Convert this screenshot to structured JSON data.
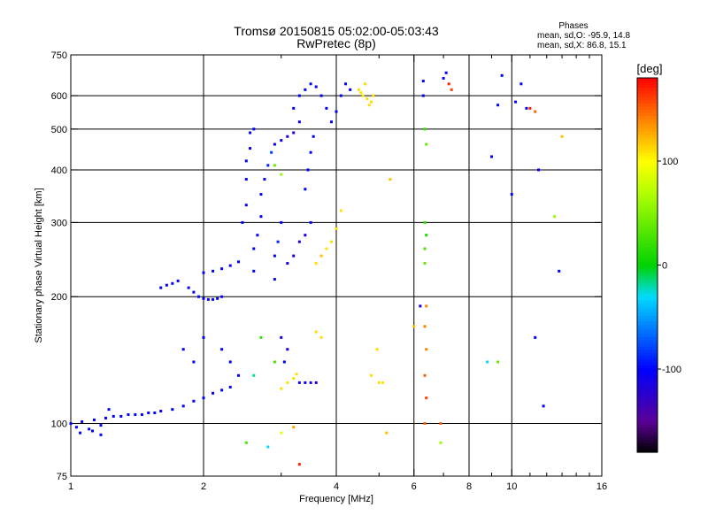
{
  "header": {
    "title_line1": "Tromsø 20150815 05:02:00-05:03:43",
    "title_line2": "RwPretec (8p)"
  },
  "stats": {
    "heading": "Phases",
    "line_o": "mean, sd,O: -95.9, 14.8",
    "line_x": "mean, sd,X:  86.8, 15.1"
  },
  "colorbar": {
    "label": "[deg]",
    "min": -180,
    "max": 180,
    "ticks": [
      {
        "value": 100,
        "label": "100"
      },
      {
        "value": 0,
        "label": "0"
      },
      {
        "value": -100,
        "label": "-100"
      }
    ]
  },
  "chart_data": {
    "type": "scatter",
    "title": "Tromsø 20150815 05:02:00-05:03:43",
    "subtitle": "RwPretec (8p)",
    "xlabel": "Frequency [MHz]",
    "ylabel": "Stationary phase Virtual Height [km]",
    "x_scale": "log",
    "y_scale": "log",
    "xlim": [
      1,
      16
    ],
    "ylim": [
      75,
      750
    ],
    "x_ticks": [
      {
        "value": 1,
        "label": "1"
      },
      {
        "value": 2,
        "label": "2"
      },
      {
        "value": 4,
        "label": "4"
      },
      {
        "value": 6,
        "label": "6"
      },
      {
        "value": 8,
        "label": "8"
      },
      {
        "value": 10,
        "label": "10"
      },
      {
        "value": 16,
        "label": "16"
      }
    ],
    "x_minor": [
      3,
      5,
      7,
      9,
      11,
      12,
      13,
      14,
      15
    ],
    "x_grid": [
      2,
      4,
      6,
      8,
      10
    ],
    "y_ticks": [
      {
        "value": 75,
        "label": "75"
      },
      {
        "value": 100,
        "label": "100"
      },
      {
        "value": 200,
        "label": "200"
      },
      {
        "value": 300,
        "label": "300"
      },
      {
        "value": 400,
        "label": "400"
      },
      {
        "value": 500,
        "label": "500"
      },
      {
        "value": 600,
        "label": "600"
      },
      {
        "value": 750,
        "label": "750"
      }
    ],
    "y_grid": [
      100,
      200,
      300,
      400,
      500,
      600
    ],
    "grid": true,
    "series": [
      {
        "points": [
          [
            1.0,
            100,
            -100
          ],
          [
            1.03,
            98,
            -100
          ],
          [
            1.06,
            101,
            -100
          ],
          [
            1.1,
            97,
            -100
          ],
          [
            1.13,
            102,
            -100
          ],
          [
            1.17,
            99,
            -100
          ],
          [
            1.2,
            103,
            -100
          ],
          [
            1.25,
            104,
            -100
          ],
          [
            1.3,
            104,
            -100
          ],
          [
            1.35,
            105,
            -100
          ],
          [
            1.4,
            105,
            -100
          ],
          [
            1.45,
            105,
            -100
          ],
          [
            1.5,
            106,
            -100
          ],
          [
            1.55,
            106,
            -100
          ],
          [
            1.6,
            107,
            -100
          ],
          [
            1.7,
            108,
            -100
          ],
          [
            1.8,
            110,
            -100
          ],
          [
            1.9,
            113,
            -100
          ],
          [
            2.0,
            115,
            -100
          ],
          [
            2.1,
            118,
            -100
          ],
          [
            2.2,
            120,
            -100
          ],
          [
            2.3,
            122,
            -100
          ],
          [
            1.05,
            95,
            -100
          ],
          [
            1.12,
            96,
            -100
          ],
          [
            1.17,
            94,
            -100
          ],
          [
            1.22,
            108,
            -100
          ],
          [
            1.6,
            210,
            -100
          ],
          [
            1.65,
            213,
            -100
          ],
          [
            1.7,
            215,
            -100
          ],
          [
            1.75,
            218,
            -100
          ],
          [
            1.85,
            210,
            -100
          ],
          [
            1.9,
            205,
            -100
          ],
          [
            1.95,
            200,
            -100
          ],
          [
            2.0,
            198,
            -100
          ],
          [
            2.05,
            197,
            -100
          ],
          [
            2.1,
            197,
            -100
          ],
          [
            2.15,
            198,
            -100
          ],
          [
            2.2,
            200,
            -100
          ],
          [
            2.0,
            228,
            -100
          ],
          [
            2.1,
            230,
            -100
          ],
          [
            2.2,
            233,
            -100
          ],
          [
            2.3,
            237,
            -100
          ],
          [
            2.4,
            242,
            -100
          ],
          [
            2.45,
            300,
            -100
          ],
          [
            2.5,
            330,
            -100
          ],
          [
            2.5,
            380,
            -100
          ],
          [
            2.5,
            420,
            -100
          ],
          [
            2.55,
            450,
            -100
          ],
          [
            2.55,
            490,
            -100
          ],
          [
            2.6,
            500,
            -100
          ],
          [
            2.6,
            230,
            -100
          ],
          [
            2.6,
            260,
            -100
          ],
          [
            2.65,
            280,
            -110
          ],
          [
            2.7,
            310,
            -100
          ],
          [
            2.7,
            350,
            -100
          ],
          [
            2.75,
            380,
            -100
          ],
          [
            2.8,
            410,
            -90
          ],
          [
            2.85,
            440,
            -80
          ],
          [
            2.9,
            460,
            -100
          ],
          [
            2.9,
            220,
            -95
          ],
          [
            2.9,
            250,
            -100
          ],
          [
            2.95,
            270,
            -90
          ],
          [
            3.0,
            300,
            -100
          ],
          [
            3.0,
            470,
            -110
          ],
          [
            3.1,
            480,
            -110
          ],
          [
            3.2,
            490,
            -120
          ],
          [
            3.3,
            520,
            -110
          ],
          [
            3.2,
            560,
            -100
          ],
          [
            3.3,
            600,
            -100
          ],
          [
            3.4,
            620,
            -100
          ],
          [
            3.5,
            640,
            -100
          ],
          [
            3.6,
            630,
            -100
          ],
          [
            3.7,
            600,
            -100
          ],
          [
            3.8,
            560,
            -100
          ],
          [
            3.9,
            520,
            -100
          ],
          [
            4.0,
            550,
            -100
          ],
          [
            4.1,
            600,
            -100
          ],
          [
            4.2,
            640,
            -100
          ],
          [
            4.3,
            620,
            -100
          ],
          [
            3.4,
            360,
            -100
          ],
          [
            3.45,
            400,
            -100
          ],
          [
            3.5,
            440,
            -100
          ],
          [
            3.55,
            480,
            -100
          ],
          [
            3.1,
            240,
            -110
          ],
          [
            3.2,
            250,
            -110
          ],
          [
            3.3,
            270,
            -120
          ],
          [
            3.4,
            280,
            -110
          ],
          [
            3.5,
            300,
            -100
          ],
          [
            3.3,
            125,
            -110
          ],
          [
            3.4,
            125,
            -110
          ],
          [
            3.5,
            125,
            -110
          ],
          [
            3.6,
            125,
            -110
          ],
          [
            2.3,
            140,
            -100
          ],
          [
            2.4,
            130,
            -100
          ],
          [
            2.2,
            150,
            -100
          ],
          [
            2.0,
            160,
            -100
          ],
          [
            1.9,
            140,
            -100
          ],
          [
            1.8,
            150,
            -100
          ],
          [
            3.0,
            160,
            -110
          ],
          [
            3.1,
            150,
            -110
          ],
          [
            3.05,
            140,
            -100
          ],
          [
            4.5,
            620,
            110
          ],
          [
            4.6,
            600,
            110
          ],
          [
            4.7,
            590,
            110
          ],
          [
            4.8,
            580,
            110
          ],
          [
            4.65,
            640,
            110
          ],
          [
            4.75,
            570,
            110
          ],
          [
            4.55,
            610,
            110
          ],
          [
            4.85,
            600,
            110
          ],
          [
            3.6,
            240,
            110
          ],
          [
            3.7,
            250,
            120
          ],
          [
            3.8,
            260,
            110
          ],
          [
            3.9,
            270,
            110
          ],
          [
            4.0,
            290,
            110
          ],
          [
            4.1,
            320,
            110
          ],
          [
            3.1,
            125,
            110
          ],
          [
            3.2,
            128,
            110
          ],
          [
            3.25,
            131,
            110
          ],
          [
            3.0,
            121,
            110
          ],
          [
            3.6,
            165,
            110
          ],
          [
            3.7,
            160,
            110
          ],
          [
            5.0,
            125,
            110
          ],
          [
            5.1,
            125,
            110
          ],
          [
            4.8,
            130,
            110
          ],
          [
            4.95,
            150,
            110
          ],
          [
            2.7,
            160,
            20
          ],
          [
            2.9,
            140,
            30
          ],
          [
            2.6,
            130,
            -20
          ],
          [
            2.9,
            410,
            40
          ],
          [
            3.0,
            390,
            60
          ],
          [
            2.5,
            90,
            30
          ],
          [
            2.8,
            88,
            -30
          ],
          [
            3.0,
            95,
            90
          ],
          [
            3.2,
            98,
            130
          ],
          [
            3.3,
            80,
            170
          ],
          [
            6.35,
            300,
            20
          ],
          [
            6.4,
            280,
            10
          ],
          [
            6.35,
            260,
            30
          ],
          [
            6.35,
            240,
            40
          ],
          [
            6.4,
            460,
            40
          ],
          [
            6.35,
            500,
            20
          ],
          [
            6.4,
            190,
            140
          ],
          [
            6.35,
            170,
            140
          ],
          [
            6.4,
            150,
            140
          ],
          [
            6.35,
            130,
            150
          ],
          [
            6.4,
            115,
            160
          ],
          [
            6.35,
            100,
            150
          ],
          [
            6.2,
            190,
            -110
          ],
          [
            6.0,
            170,
            120
          ],
          [
            6.9,
            100,
            150
          ],
          [
            7.0,
            660,
            -100
          ],
          [
            7.2,
            640,
            170
          ],
          [
            7.3,
            620,
            160
          ],
          [
            6.3,
            650,
            -100
          ],
          [
            6.3,
            600,
            -100
          ],
          [
            7.1,
            680,
            -100
          ],
          [
            8.8,
            140,
            -30
          ],
          [
            9.3,
            140,
            40
          ],
          [
            9.5,
            670,
            -100
          ],
          [
            9.3,
            570,
            -100
          ],
          [
            9.0,
            430,
            -100
          ],
          [
            10.0,
            350,
            -100
          ],
          [
            10.2,
            580,
            -100
          ],
          [
            10.5,
            640,
            -100
          ],
          [
            10.8,
            560,
            -100
          ],
          [
            11.0,
            560,
            170
          ],
          [
            11.3,
            550,
            150
          ],
          [
            11.5,
            400,
            -100
          ],
          [
            11.3,
            160,
            -100
          ],
          [
            11.8,
            110,
            -100
          ],
          [
            12.5,
            310,
            60
          ],
          [
            12.8,
            230,
            -100
          ],
          [
            13.0,
            480,
            120
          ],
          [
            5.3,
            380,
            120
          ],
          [
            5.2,
            95,
            120
          ],
          [
            6.9,
            90,
            60
          ]
        ]
      }
    ]
  }
}
